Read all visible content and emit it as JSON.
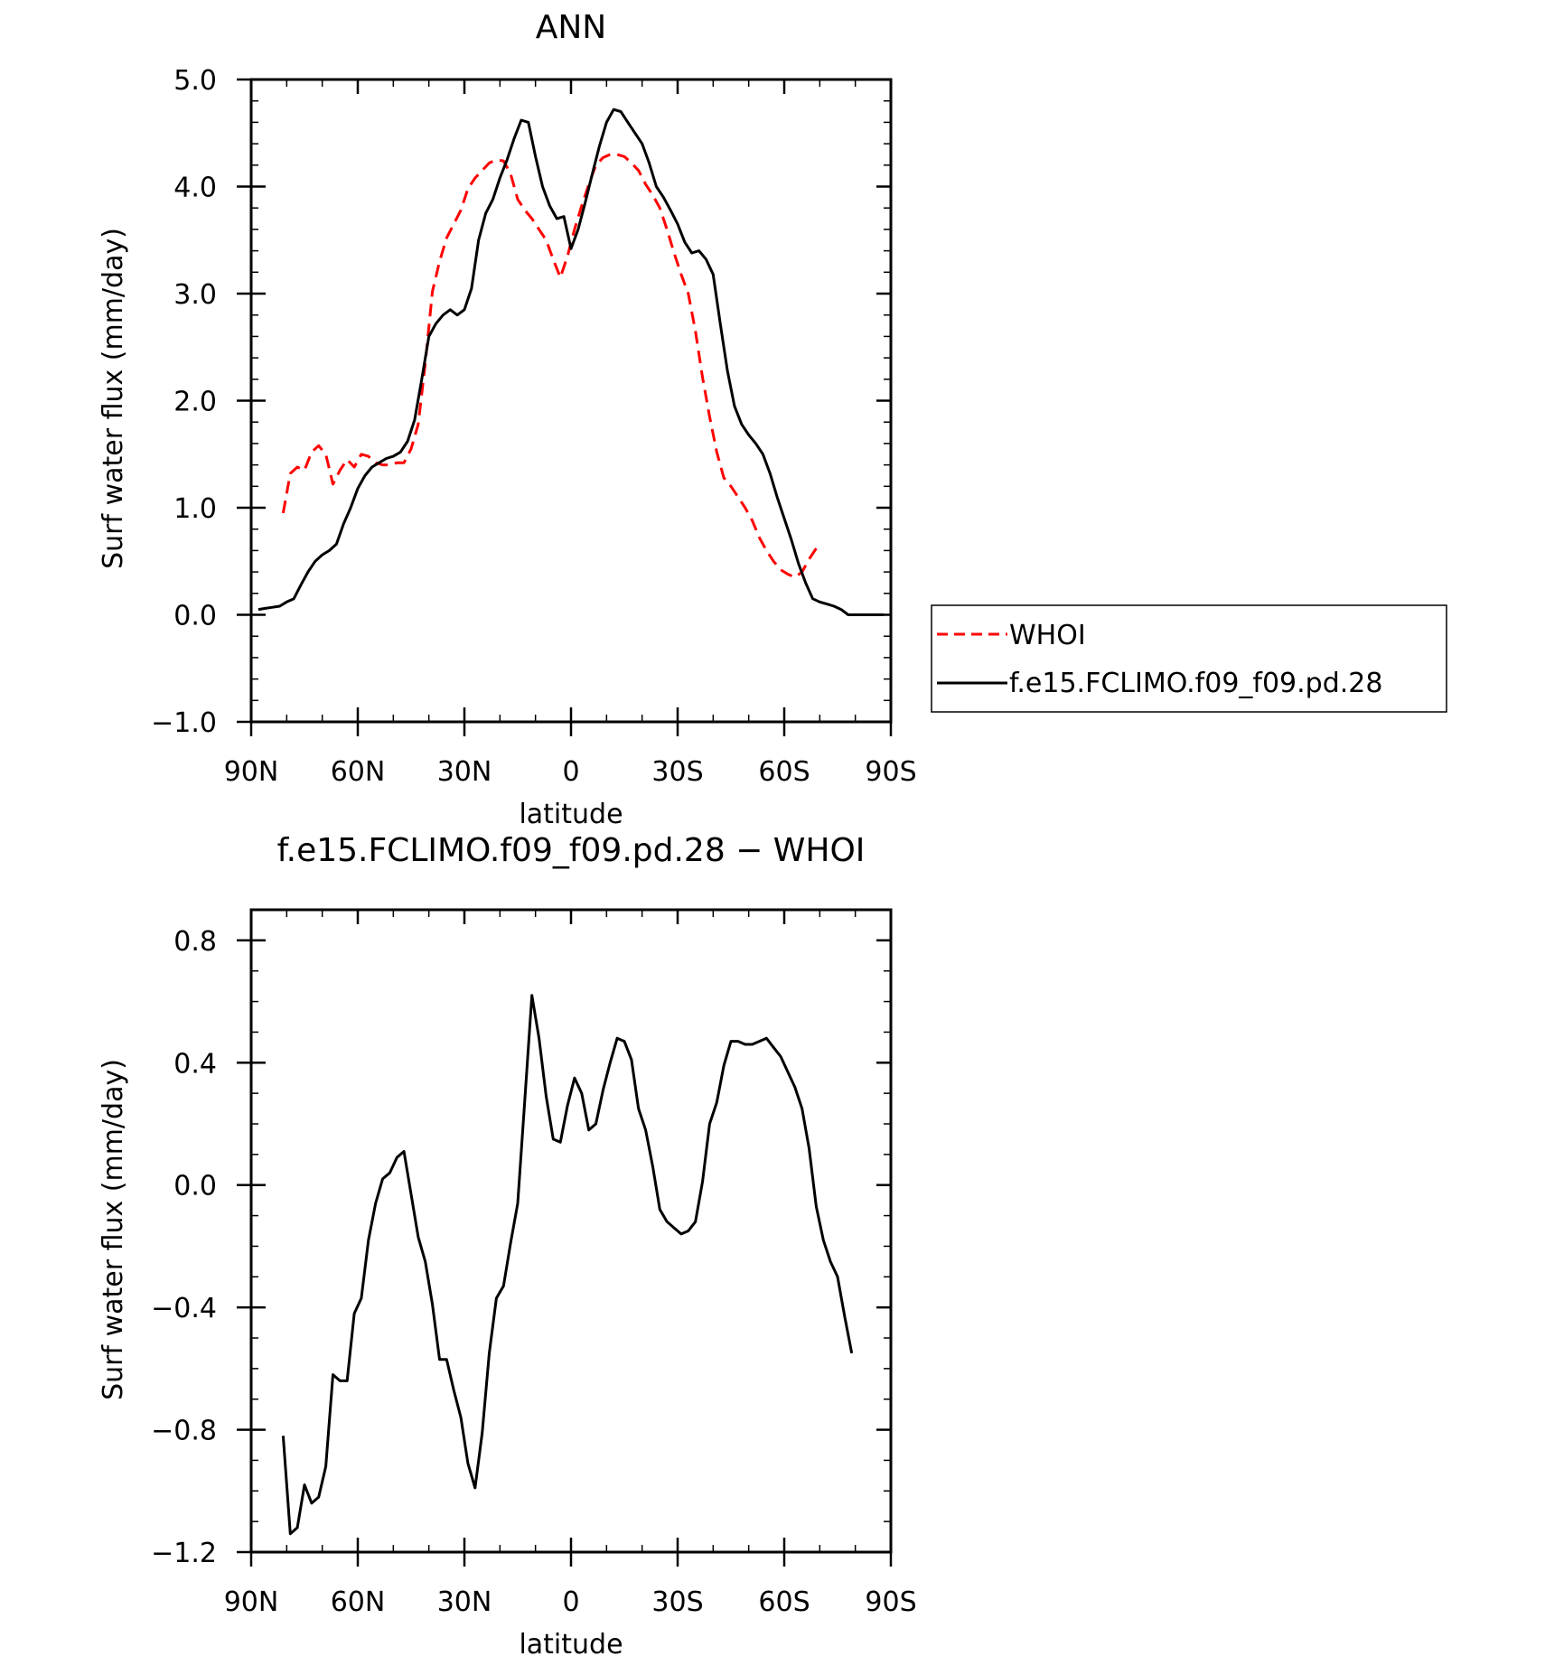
{
  "chart_data": [
    {
      "type": "line",
      "title": "ANN",
      "xlabel": "latitude",
      "ylabel": "Surf water flux (mm/day)",
      "x_ticks": [
        "90N",
        "60N",
        "30N",
        "0",
        "30S",
        "60S",
        "90S"
      ],
      "y_ticks": [
        "5.0",
        "4.0",
        "3.0",
        "2.0",
        "1.0",
        "0.0",
        "−1.0"
      ],
      "xlim": [
        90,
        -90
      ],
      "ylim": [
        -1,
        5
      ],
      "x_unit_note": "x values are latitude in degrees, positive = N, negative = S",
      "legend": {
        "position": "outside-right"
      },
      "series": [
        {
          "name": "WHOI",
          "color": "#ff0000",
          "dash": "dashed",
          "x": [
            81,
            79,
            77,
            75,
            73,
            71,
            69,
            67,
            65,
            63,
            61,
            59,
            57,
            55,
            53,
            51,
            49,
            47,
            45,
            43,
            41,
            39,
            37,
            35,
            33,
            31,
            29,
            27,
            25,
            23,
            21,
            19,
            17,
            15,
            13,
            11,
            9,
            7,
            5,
            3,
            1,
            -1,
            -3,
            -5,
            -7,
            -9,
            -11,
            -13,
            -15,
            -17,
            -19,
            -21,
            -23,
            -25,
            -27,
            -29,
            -31,
            -33,
            -35,
            -37,
            -39,
            -41,
            -43,
            -45,
            -47,
            -49,
            -51,
            -53,
            -55,
            -57,
            -59,
            -61,
            -63,
            -65,
            -67,
            -69,
            -71,
            -73,
            -75,
            -77,
            -79
          ],
          "y": [
            0.95,
            1.32,
            1.38,
            1.35,
            1.52,
            1.58,
            1.5,
            1.22,
            1.35,
            1.45,
            1.38,
            1.5,
            1.48,
            1.42,
            1.4,
            1.4,
            1.42,
            1.42,
            1.55,
            1.78,
            2.35,
            3.02,
            3.3,
            3.52,
            3.65,
            3.78,
            3.98,
            4.08,
            4.15,
            4.22,
            4.25,
            4.24,
            4.12,
            3.88,
            3.78,
            3.7,
            3.6,
            3.5,
            3.32,
            3.15,
            3.35,
            3.6,
            3.82,
            4.02,
            4.2,
            4.27,
            4.3,
            4.3,
            4.28,
            4.22,
            4.15,
            4.02,
            3.92,
            3.8,
            3.6,
            3.38,
            3.18,
            3.0,
            2.65,
            2.22,
            1.85,
            1.52,
            1.28,
            1.2,
            1.1,
            1.0,
            0.88,
            0.72,
            0.6,
            0.5,
            0.42,
            0.38,
            0.35,
            0.4,
            0.52,
            0.62,
            null,
            null,
            null,
            null,
            null
          ]
        },
        {
          "name": "f.e15.FCLIMO.f09_f09.pd.28",
          "color": "#000000",
          "dash": "solid",
          "x": [
            88,
            86,
            84,
            82,
            80,
            78,
            76,
            74,
            72,
            70,
            68,
            66,
            64,
            62,
            60,
            58,
            56,
            54,
            52,
            50,
            48,
            46,
            44,
            42,
            40,
            38,
            36,
            34,
            32,
            30,
            28,
            26,
            24,
            22,
            20,
            18,
            16,
            14,
            12,
            10,
            8,
            6,
            4,
            2,
            0,
            -2,
            -4,
            -6,
            -8,
            -10,
            -12,
            -14,
            -16,
            -18,
            -20,
            -22,
            -24,
            -26,
            -28,
            -30,
            -32,
            -34,
            -36,
            -38,
            -40,
            -42,
            -44,
            -46,
            -48,
            -50,
            -52,
            -54,
            -56,
            -58,
            -60,
            -62,
            -64,
            -66,
            -68,
            -70,
            -72,
            -74,
            -76,
            -78,
            -80,
            -82,
            -84,
            -86,
            -88
          ],
          "y": [
            0.05,
            0.06,
            0.07,
            0.08,
            0.12,
            0.15,
            0.28,
            0.4,
            0.5,
            0.56,
            0.6,
            0.66,
            0.85,
            1.0,
            1.18,
            1.3,
            1.38,
            1.42,
            1.46,
            1.48,
            1.52,
            1.62,
            1.82,
            2.2,
            2.6,
            2.72,
            2.8,
            2.85,
            2.8,
            2.85,
            3.05,
            3.5,
            3.75,
            3.88,
            4.08,
            4.25,
            4.45,
            4.62,
            4.6,
            4.28,
            4.0,
            3.82,
            3.7,
            3.72,
            3.42,
            3.6,
            3.85,
            4.12,
            4.38,
            4.6,
            4.72,
            4.7,
            4.6,
            4.5,
            4.4,
            4.22,
            4.0,
            3.9,
            3.78,
            3.65,
            3.48,
            3.38,
            3.4,
            3.32,
            3.18,
            2.72,
            2.28,
            1.95,
            1.78,
            1.68,
            1.6,
            1.5,
            1.32,
            1.1,
            0.9,
            0.7,
            0.48,
            0.3,
            0.15,
            0.12,
            0.1,
            0.08,
            0.05,
            0.0,
            0.0,
            0.0,
            0.0,
            0.0,
            0.0
          ]
        }
      ]
    },
    {
      "type": "line",
      "title": "f.e15.FCLIMO.f09_f09.pd.28 − WHOI",
      "xlabel": "latitude",
      "ylabel": "Surf water flux (mm/day)",
      "x_ticks": [
        "90N",
        "60N",
        "30N",
        "0",
        "30S",
        "60S",
        "90S"
      ],
      "y_ticks": [
        "0.8",
        "0.4",
        "0.0",
        "−0.4",
        "−0.8",
        "−1.2"
      ],
      "xlim": [
        90,
        -90
      ],
      "ylim": [
        -1.2,
        0.9
      ],
      "series": [
        {
          "color": "#000000",
          "dash": "solid",
          "x": [
            81,
            79,
            77,
            75,
            73,
            71,
            69,
            67,
            65,
            63,
            61,
            59,
            57,
            55,
            53,
            51,
            49,
            47,
            45,
            43,
            41,
            39,
            37,
            35,
            33,
            31,
            29,
            27,
            25,
            23,
            21,
            19,
            17,
            15,
            13,
            11,
            9,
            7,
            5,
            3,
            1,
            -1,
            -3,
            -5,
            -7,
            -9,
            -11,
            -13,
            -15,
            -17,
            -19,
            -21,
            -23,
            -25,
            -27,
            -29,
            -31,
            -33,
            -35,
            -37,
            -39,
            -41,
            -43,
            -45,
            -47,
            -49,
            -51,
            -53,
            -55,
            -57,
            -59,
            -61,
            -63,
            -65,
            -67,
            -69,
            -71,
            -73,
            -75,
            -77,
            -79
          ],
          "y": [
            -0.82,
            -1.14,
            -1.12,
            -0.98,
            -1.04,
            -1.02,
            -0.92,
            -0.62,
            -0.64,
            -0.64,
            -0.42,
            -0.37,
            -0.18,
            -0.06,
            0.02,
            0.04,
            0.09,
            0.11,
            -0.03,
            -0.17,
            -0.25,
            -0.39,
            -0.57,
            -0.57,
            -0.67,
            -0.76,
            -0.91,
            -0.99,
            -0.81,
            -0.55,
            -0.37,
            -0.33,
            -0.19,
            -0.06,
            0.28,
            0.62,
            0.48,
            0.29,
            0.15,
            0.14,
            0.26,
            0.35,
            0.3,
            0.18,
            0.2,
            0.31,
            0.4,
            0.48,
            0.47,
            0.41,
            0.25,
            0.18,
            0.06,
            -0.08,
            -0.12,
            -0.14,
            -0.16,
            -0.15,
            -0.12,
            0.01,
            0.2,
            0.27,
            0.39,
            0.47,
            0.47,
            0.46,
            0.46,
            0.47,
            0.48,
            0.45,
            0.42,
            0.37,
            0.32,
            0.25,
            0.12,
            -0.07,
            -0.18,
            -0.25,
            -0.3,
            -0.43,
            -0.55
          ]
        }
      ]
    }
  ]
}
